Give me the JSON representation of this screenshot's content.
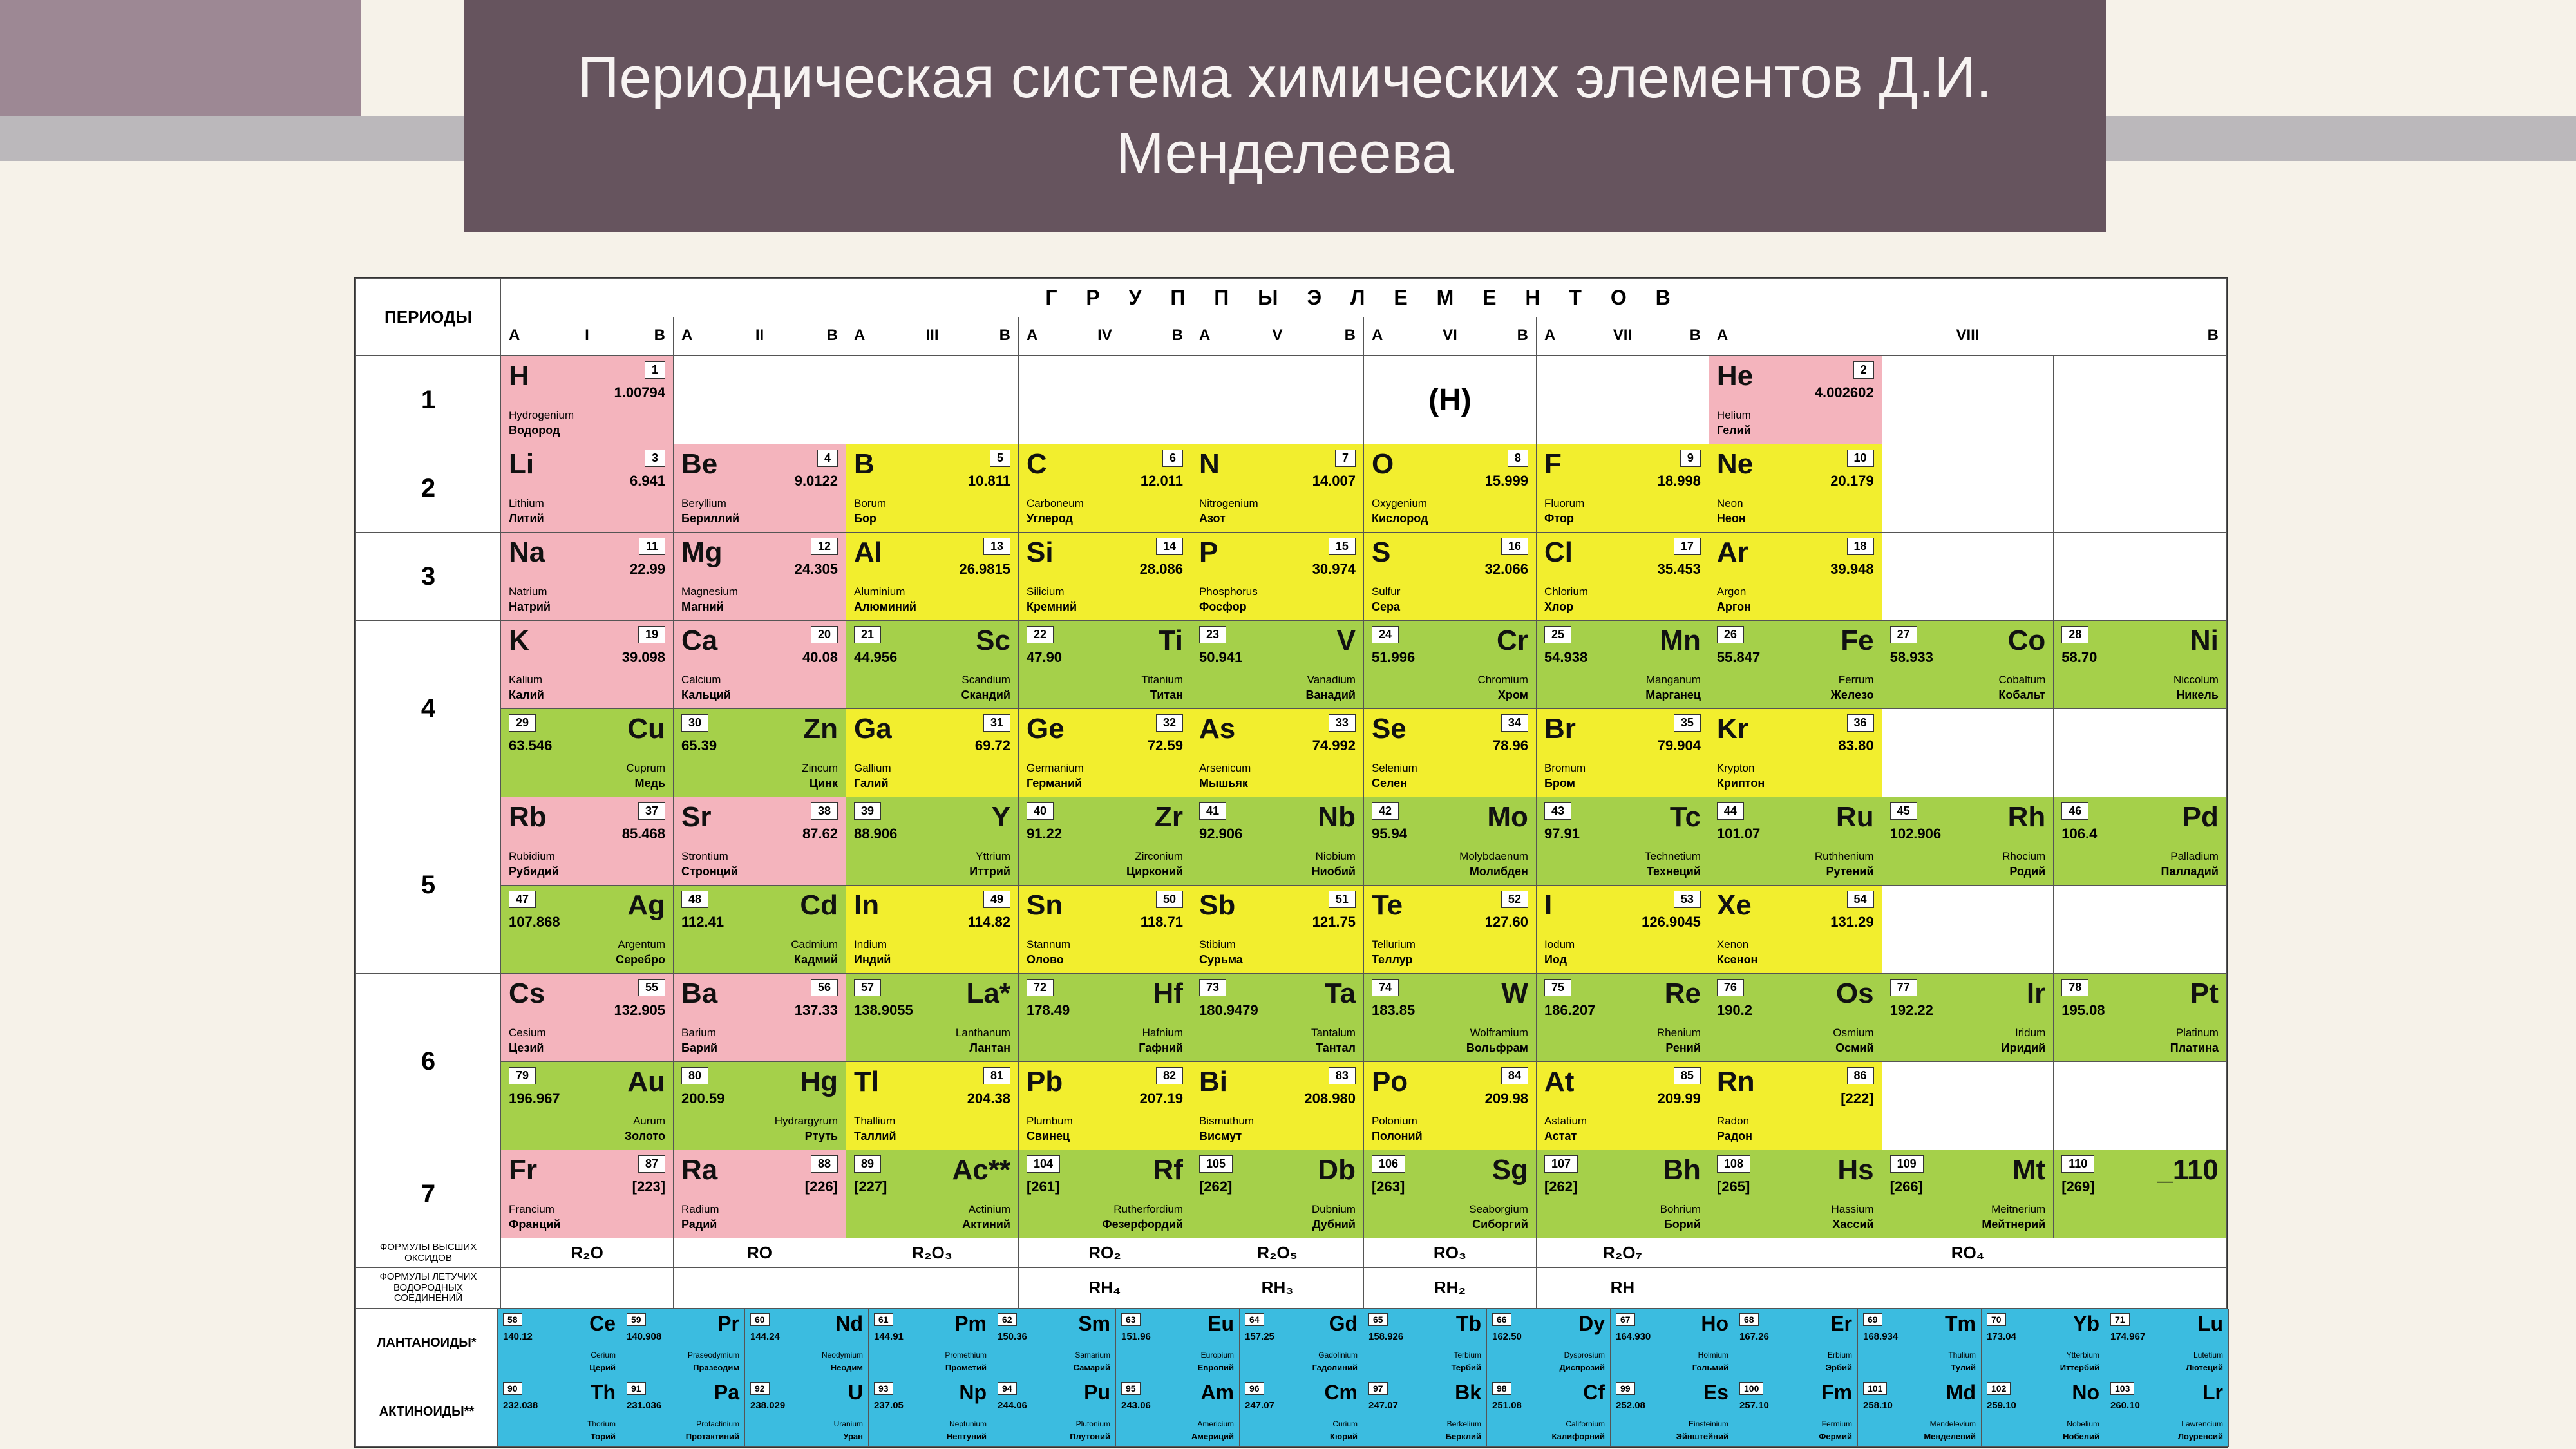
{
  "title": "Периодическая система химических элементов Д.И. Менделеева",
  "colors": {
    "bg": "#f6f2e9",
    "accent": "#9d8894",
    "stripe": "#bbb8bb",
    "title_bg": "#66545e",
    "title_fg": "#f7f3f2",
    "pink": "#f4b4bd",
    "yellow": "#f2ee2e",
    "green": "#a5d04a",
    "blue": "#3bbce0",
    "white": "#ffffff"
  },
  "header": {
    "periods": "ПЕРИОДЫ",
    "groups_title": "Г Р У П П Ы   Э Л Е М Е Н Т О В",
    "groups": [
      "I",
      "II",
      "III",
      "IV",
      "V",
      "VI",
      "VII",
      "VIII"
    ],
    "a": "A",
    "b": "B"
  },
  "periods": [
    "1",
    "2",
    "3",
    "4",
    "5",
    "6",
    "7"
  ],
  "h_alt": "(H)",
  "footer": {
    "oxides_label": "ФОРМУЛЫ ВЫСШИХ ОКСИДОВ",
    "oxides": [
      "R₂O",
      "RO",
      "R₂O₃",
      "RO₂",
      "R₂O₅",
      "RO₃",
      "R₂O₇",
      "RO₄"
    ],
    "hydrides_label": "ФОРМУЛЫ ЛЕТУЧИХ ВОДОРОДНЫХ СОЕДИНЕНИЙ",
    "hydrides": [
      "",
      "",
      "",
      "RH₄",
      "RH₃",
      "RH₂",
      "RH",
      ""
    ]
  },
  "lanth_label": "ЛАНТАНОИДЫ*",
  "act_label": "АКТИНОИДЫ**",
  "elements": {
    "H": {
      "z": 1,
      "m": "1.00794",
      "lat": "Hydrogenium",
      "rus": "Водород",
      "c": "pink"
    },
    "He": {
      "z": 2,
      "m": "4.002602",
      "lat": "Helium",
      "rus": "Гелий",
      "c": "pink"
    },
    "Li": {
      "z": 3,
      "m": "6.941",
      "lat": "Lithium",
      "rus": "Литий",
      "c": "pink"
    },
    "Be": {
      "z": 4,
      "m": "9.0122",
      "lat": "Beryllium",
      "rus": "Бериллий",
      "c": "pink"
    },
    "B": {
      "z": 5,
      "m": "10.811",
      "lat": "Borum",
      "rus": "Бор",
      "c": "yellow"
    },
    "C": {
      "z": 6,
      "m": "12.011",
      "lat": "Carboneum",
      "rus": "Углерод",
      "c": "yellow"
    },
    "N": {
      "z": 7,
      "m": "14.007",
      "lat": "Nitrogenium",
      "rus": "Азот",
      "c": "yellow"
    },
    "O": {
      "z": 8,
      "m": "15.999",
      "lat": "Oxygenium",
      "rus": "Кислород",
      "c": "yellow"
    },
    "F": {
      "z": 9,
      "m": "18.998",
      "lat": "Fluorum",
      "rus": "Фтор",
      "c": "yellow"
    },
    "Ne": {
      "z": 10,
      "m": "20.179",
      "lat": "Neon",
      "rus": "Неон",
      "c": "yellow"
    },
    "Na": {
      "z": 11,
      "m": "22.99",
      "lat": "Natrium",
      "rus": "Натрий",
      "c": "pink"
    },
    "Mg": {
      "z": 12,
      "m": "24.305",
      "lat": "Magnesium",
      "rus": "Магний",
      "c": "pink"
    },
    "Al": {
      "z": 13,
      "m": "26.9815",
      "lat": "Aluminium",
      "rus": "Алюминий",
      "c": "yellow"
    },
    "Si": {
      "z": 14,
      "m": "28.086",
      "lat": "Silicium",
      "rus": "Кремний",
      "c": "yellow"
    },
    "P": {
      "z": 15,
      "m": "30.974",
      "lat": "Phosphorus",
      "rus": "Фосфор",
      "c": "yellow"
    },
    "S": {
      "z": 16,
      "m": "32.066",
      "lat": "Sulfur",
      "rus": "Сера",
      "c": "yellow"
    },
    "Cl": {
      "z": 17,
      "m": "35.453",
      "lat": "Chlorium",
      "rus": "Хлор",
      "c": "yellow"
    },
    "Ar": {
      "z": 18,
      "m": "39.948",
      "lat": "Argon",
      "rus": "Аргон",
      "c": "yellow"
    },
    "K": {
      "z": 19,
      "m": "39.098",
      "lat": "Kalium",
      "rus": "Калий",
      "c": "pink"
    },
    "Ca": {
      "z": 20,
      "m": "40.08",
      "lat": "Calcium",
      "rus": "Кальций",
      "c": "pink"
    },
    "Sc": {
      "z": 21,
      "m": "44.956",
      "lat": "Scandium",
      "rus": "Скандий",
      "c": "green"
    },
    "Ti": {
      "z": 22,
      "m": "47.90",
      "lat": "Titanium",
      "rus": "Титан",
      "c": "green"
    },
    "V": {
      "z": 23,
      "m": "50.941",
      "lat": "Vanadium",
      "rus": "Ванадий",
      "c": "green"
    },
    "Cr": {
      "z": 24,
      "m": "51.996",
      "lat": "Chromium",
      "rus": "Хром",
      "c": "green"
    },
    "Mn": {
      "z": 25,
      "m": "54.938",
      "lat": "Manganum",
      "rus": "Марганец",
      "c": "green"
    },
    "Fe": {
      "z": 26,
      "m": "55.847",
      "lat": "Ferrum",
      "rus": "Железо",
      "c": "green"
    },
    "Co": {
      "z": 27,
      "m": "58.933",
      "lat": "Cobaltum",
      "rus": "Кобальт",
      "c": "green"
    },
    "Ni": {
      "z": 28,
      "m": "58.70",
      "lat": "Niccolum",
      "rus": "Никель",
      "c": "green"
    },
    "Cu": {
      "z": 29,
      "m": "63.546",
      "lat": "Cuprum",
      "rus": "Медь",
      "c": "green"
    },
    "Zn": {
      "z": 30,
      "m": "65.39",
      "lat": "Zincum",
      "rus": "Цинк",
      "c": "green"
    },
    "Ga": {
      "z": 31,
      "m": "69.72",
      "lat": "Gallium",
      "rus": "Галий",
      "c": "yellow"
    },
    "Ge": {
      "z": 32,
      "m": "72.59",
      "lat": "Germanium",
      "rus": "Германий",
      "c": "yellow"
    },
    "As": {
      "z": 33,
      "m": "74.992",
      "lat": "Arsenicum",
      "rus": "Мышьяк",
      "c": "yellow"
    },
    "Se": {
      "z": 34,
      "m": "78.96",
      "lat": "Selenium",
      "rus": "Селен",
      "c": "yellow"
    },
    "Br": {
      "z": 35,
      "m": "79.904",
      "lat": "Bromum",
      "rus": "Бром",
      "c": "yellow"
    },
    "Kr": {
      "z": 36,
      "m": "83.80",
      "lat": "Krypton",
      "rus": "Криптон",
      "c": "yellow"
    },
    "Rb": {
      "z": 37,
      "m": "85.468",
      "lat": "Rubidium",
      "rus": "Рубидий",
      "c": "pink"
    },
    "Sr": {
      "z": 38,
      "m": "87.62",
      "lat": "Strontium",
      "rus": "Стронций",
      "c": "pink"
    },
    "Y": {
      "z": 39,
      "m": "88.906",
      "lat": "Yttrium",
      "rus": "Иттрий",
      "c": "green"
    },
    "Zr": {
      "z": 40,
      "m": "91.22",
      "lat": "Zirconium",
      "rus": "Цирконий",
      "c": "green"
    },
    "Nb": {
      "z": 41,
      "m": "92.906",
      "lat": "Niobium",
      "rus": "Ниобий",
      "c": "green"
    },
    "Mo": {
      "z": 42,
      "m": "95.94",
      "lat": "Molybdaenum",
      "rus": "Молибден",
      "c": "green"
    },
    "Tc": {
      "z": 43,
      "m": "97.91",
      "lat": "Technetium",
      "rus": "Технеций",
      "c": "green"
    },
    "Ru": {
      "z": 44,
      "m": "101.07",
      "lat": "Ruthhenium",
      "rus": "Рутений",
      "c": "green"
    },
    "Rh": {
      "z": 45,
      "m": "102.906",
      "lat": "Rhocium",
      "rus": "Родий",
      "c": "green"
    },
    "Pd": {
      "z": 46,
      "m": "106.4",
      "lat": "Palladium",
      "rus": "Палладий",
      "c": "green"
    },
    "Ag": {
      "z": 47,
      "m": "107.868",
      "lat": "Argentum",
      "rus": "Серебро",
      "c": "green"
    },
    "Cd": {
      "z": 48,
      "m": "112.41",
      "lat": "Cadmium",
      "rus": "Кадмий",
      "c": "green"
    },
    "In": {
      "z": 49,
      "m": "114.82",
      "lat": "Indium",
      "rus": "Индий",
      "c": "yellow"
    },
    "Sn": {
      "z": 50,
      "m": "118.71",
      "lat": "Stannum",
      "rus": "Олово",
      "c": "yellow"
    },
    "Sb": {
      "z": 51,
      "m": "121.75",
      "lat": "Stibium",
      "rus": "Сурьма",
      "c": "yellow"
    },
    "Te": {
      "z": 52,
      "m": "127.60",
      "lat": "Tellurium",
      "rus": "Теллур",
      "c": "yellow"
    },
    "I": {
      "z": 53,
      "m": "126.9045",
      "lat": "Iodum",
      "rus": "Иод",
      "c": "yellow"
    },
    "Xe": {
      "z": 54,
      "m": "131.29",
      "lat": "Xenon",
      "rus": "Ксенон",
      "c": "yellow"
    },
    "Cs": {
      "z": 55,
      "m": "132.905",
      "lat": "Cesium",
      "rus": "Цезий",
      "c": "pink"
    },
    "Ba": {
      "z": 56,
      "m": "137.33",
      "lat": "Barium",
      "rus": "Барий",
      "c": "pink"
    },
    "La": {
      "z": 57,
      "m": "138.9055",
      "lat": "Lanthanum",
      "rus": "Лантан",
      "c": "green",
      "suf": "*"
    },
    "Hf": {
      "z": 72,
      "m": "178.49",
      "lat": "Hafnium",
      "rus": "Гафний",
      "c": "green"
    },
    "Ta": {
      "z": 73,
      "m": "180.9479",
      "lat": "Tantalum",
      "rus": "Тантал",
      "c": "green"
    },
    "W": {
      "z": 74,
      "m": "183.85",
      "lat": "Wolframium",
      "rus": "Вольфрам",
      "c": "green"
    },
    "Re": {
      "z": 75,
      "m": "186.207",
      "lat": "Rhenium",
      "rus": "Рений",
      "c": "green"
    },
    "Os": {
      "z": 76,
      "m": "190.2",
      "lat": "Osmium",
      "rus": "Осмий",
      "c": "green"
    },
    "Ir": {
      "z": 77,
      "m": "192.22",
      "lat": "Iridum",
      "rus": "Иридий",
      "c": "green"
    },
    "Pt": {
      "z": 78,
      "m": "195.08",
      "lat": "Platinum",
      "rus": "Платина",
      "c": "green"
    },
    "Au": {
      "z": 79,
      "m": "196.967",
      "lat": "Aurum",
      "rus": "Золото",
      "c": "green"
    },
    "Hg": {
      "z": 80,
      "m": "200.59",
      "lat": "Hydrargyrum",
      "rus": "Ртуть",
      "c": "green"
    },
    "Tl": {
      "z": 81,
      "m": "204.38",
      "lat": "Thallium",
      "rus": "Таллий",
      "c": "yellow"
    },
    "Pb": {
      "z": 82,
      "m": "207.19",
      "lat": "Plumbum",
      "rus": "Свинец",
      "c": "yellow"
    },
    "Bi": {
      "z": 83,
      "m": "208.980",
      "lat": "Bismuthum",
      "rus": "Висмут",
      "c": "yellow"
    },
    "Po": {
      "z": 84,
      "m": "209.98",
      "lat": "Polonium",
      "rus": "Полоний",
      "c": "yellow"
    },
    "At": {
      "z": 85,
      "m": "209.99",
      "lat": "Astatium",
      "rus": "Астат",
      "c": "yellow"
    },
    "Rn": {
      "z": 86,
      "m": "[222]",
      "lat": "Radon",
      "rus": "Радон",
      "c": "yellow"
    },
    "Fr": {
      "z": 87,
      "m": "[223]",
      "lat": "Francium",
      "rus": "Франций",
      "c": "pink"
    },
    "Ra": {
      "z": 88,
      "m": "[226]",
      "lat": "Radium",
      "rus": "Радий",
      "c": "pink"
    },
    "Ac": {
      "z": 89,
      "m": "[227]",
      "lat": "Actinium",
      "rus": "Актиний",
      "c": "green",
      "suf": "**"
    },
    "Rf": {
      "z": 104,
      "m": "[261]",
      "lat": "Rutherfordium",
      "rus": "Фезерфордий",
      "c": "green"
    },
    "Db": {
      "z": 105,
      "m": "[262]",
      "lat": "Dubnium",
      "rus": "Дубний",
      "c": "green"
    },
    "Sg": {
      "z": 106,
      "m": "[263]",
      "lat": "Seaborgium",
      "rus": "Сиборгий",
      "c": "green"
    },
    "Bh": {
      "z": 107,
      "m": "[262]",
      "lat": "Bohrium",
      "rus": "Борий",
      "c": "green"
    },
    "Hs": {
      "z": 108,
      "m": "[265]",
      "lat": "Hassium",
      "rus": "Хассий",
      "c": "green"
    },
    "Mt": {
      "z": 109,
      "m": "[266]",
      "lat": "Meitnerium",
      "rus": "Мейтнерий",
      "c": "green"
    },
    "_110": {
      "z": 110,
      "m": "[269]",
      "lat": "",
      "rus": "",
      "c": "green"
    }
  },
  "lanthanides": [
    {
      "s": "Ce",
      "z": 58,
      "m": "140.12",
      "lat": "Cerium",
      "rus": "Церий"
    },
    {
      "s": "Pr",
      "z": 59,
      "m": "140.908",
      "lat": "Praseodymium",
      "rus": "Празеодим"
    },
    {
      "s": "Nd",
      "z": 60,
      "m": "144.24",
      "lat": "Neodymium",
      "rus": "Неодим"
    },
    {
      "s": "Pm",
      "z": 61,
      "m": "144.91",
      "lat": "Promethium",
      "rus": "Прометий"
    },
    {
      "s": "Sm",
      "z": 62,
      "m": "150.36",
      "lat": "Samarium",
      "rus": "Самарий"
    },
    {
      "s": "Eu",
      "z": 63,
      "m": "151.96",
      "lat": "Europium",
      "rus": "Европий"
    },
    {
      "s": "Gd",
      "z": 64,
      "m": "157.25",
      "lat": "Gadolinium",
      "rus": "Гадолиний"
    },
    {
      "s": "Tb",
      "z": 65,
      "m": "158.926",
      "lat": "Terbium",
      "rus": "Тербий"
    },
    {
      "s": "Dy",
      "z": 66,
      "m": "162.50",
      "lat": "Dysprosium",
      "rus": "Диспрозий"
    },
    {
      "s": "Ho",
      "z": 67,
      "m": "164.930",
      "lat": "Holmium",
      "rus": "Гольмий"
    },
    {
      "s": "Er",
      "z": 68,
      "m": "167.26",
      "lat": "Erbium",
      "rus": "Эрбий"
    },
    {
      "s": "Tm",
      "z": 69,
      "m": "168.934",
      "lat": "Thulium",
      "rus": "Тулий"
    },
    {
      "s": "Yb",
      "z": 70,
      "m": "173.04",
      "lat": "Ytterbium",
      "rus": "Иттербий"
    },
    {
      "s": "Lu",
      "z": 71,
      "m": "174.967",
      "lat": "Lutetium",
      "rus": "Лютеций"
    }
  ],
  "actinides": [
    {
      "s": "Th",
      "z": 90,
      "m": "232.038",
      "lat": "Thorium",
      "rus": "Торий"
    },
    {
      "s": "Pa",
      "z": 91,
      "m": "231.036",
      "lat": "Protactinium",
      "rus": "Протактиний"
    },
    {
      "s": "U",
      "z": 92,
      "m": "238.029",
      "lat": "Uranium",
      "rus": "Уран"
    },
    {
      "s": "Np",
      "z": 93,
      "m": "237.05",
      "lat": "Neptunium",
      "rus": "Нептуний"
    },
    {
      "s": "Pu",
      "z": 94,
      "m": "244.06",
      "lat": "Plutonium",
      "rus": "Плутоний"
    },
    {
      "s": "Am",
      "z": 95,
      "m": "243.06",
      "lat": "Americium",
      "rus": "Америций"
    },
    {
      "s": "Cm",
      "z": 96,
      "m": "247.07",
      "lat": "Curium",
      "rus": "Кюрий"
    },
    {
      "s": "Bk",
      "z": 97,
      "m": "247.07",
      "lat": "Berkelium",
      "rus": "Берклий"
    },
    {
      "s": "Cf",
      "z": 98,
      "m": "251.08",
      "lat": "Californium",
      "rus": "Калифорний"
    },
    {
      "s": "Es",
      "z": 99,
      "m": "252.08",
      "lat": "Einsteinium",
      "rus": "Эйнштейний"
    },
    {
      "s": "Fm",
      "z": 100,
      "m": "257.10",
      "lat": "Fermium",
      "rus": "Фермий"
    },
    {
      "s": "Md",
      "z": 101,
      "m": "258.10",
      "lat": "Mendelevium",
      "rus": "Менделевий"
    },
    {
      "s": "No",
      "z": 102,
      "m": "259.10",
      "lat": "Nobelium",
      "rus": "Нобелий"
    },
    {
      "s": "Lr",
      "z": 103,
      "m": "260.10",
      "lat": "Lawrencium",
      "rus": "Лоуренсий"
    }
  ],
  "layout": {
    "rows": [
      {
        "period": "1",
        "cells": [
          [
            "H"
          ],
          [
            ""
          ],
          [
            ""
          ],
          [
            ""
          ],
          [
            ""
          ],
          [
            "(H)"
          ],
          [
            ""
          ],
          [
            "He",
            null,
            null
          ]
        ]
      },
      {
        "period": "2",
        "cells": [
          [
            "Li"
          ],
          [
            "Be"
          ],
          [
            "B"
          ],
          [
            "C"
          ],
          [
            "N"
          ],
          [
            "O"
          ],
          [
            "F"
          ],
          [
            "Ne",
            null,
            null
          ]
        ]
      },
      {
        "period": "3",
        "cells": [
          [
            "Na"
          ],
          [
            "Mg"
          ],
          [
            "Al"
          ],
          [
            "Si"
          ],
          [
            "P"
          ],
          [
            "S"
          ],
          [
            "Cl"
          ],
          [
            "Ar",
            null,
            null
          ]
        ]
      }
    ],
    "double_rows": [
      {
        "period": "4",
        "top": [
          "K",
          "Ca",
          "Sc",
          "Ti",
          "V",
          "Cr",
          "Mn",
          [
            "Fe",
            "Co",
            "Ni"
          ]
        ],
        "bot": [
          "Cu",
          "Zn",
          "Ga",
          "Ge",
          "As",
          "Se",
          "Br",
          [
            "Kr",
            null,
            null
          ]
        ]
      },
      {
        "period": "5",
        "top": [
          "Rb",
          "Sr",
          "Y",
          "Zr",
          "Nb",
          "Mo",
          "Tc",
          [
            "Ru",
            "Rh",
            "Pd"
          ]
        ],
        "bot": [
          "Ag",
          "Cd",
          "In",
          "Sn",
          "Sb",
          "Te",
          "I",
          [
            "Xe",
            null,
            null
          ]
        ]
      },
      {
        "period": "6",
        "top": [
          "Cs",
          "Ba",
          "La",
          "Hf",
          "Ta",
          "W",
          "Re",
          [
            "Os",
            "Ir",
            "Pt"
          ]
        ],
        "bot": [
          "Au",
          "Hg",
          "Tl",
          "Pb",
          "Bi",
          "Po",
          "At",
          [
            "Rn",
            null,
            null
          ]
        ]
      },
      {
        "period": "7",
        "top": [
          "Fr",
          "Ra",
          "Ac",
          "Rf",
          "Db",
          "Sg",
          "Bh",
          [
            "Hs",
            "Mt",
            "_110"
          ]
        ],
        "bot": null
      }
    ]
  }
}
